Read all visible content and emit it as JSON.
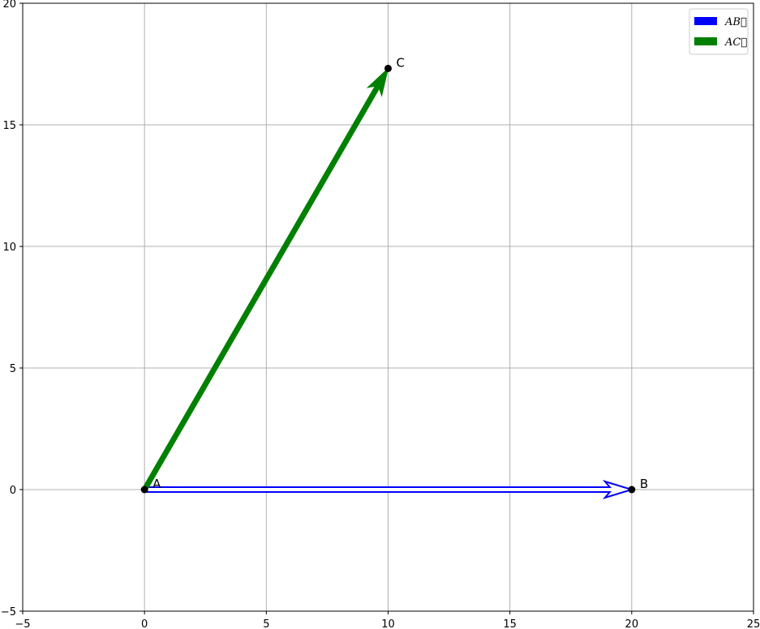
{
  "chart_data": {
    "type": "vector",
    "title": "",
    "xlabel": "",
    "ylabel": "",
    "xlim": [
      -5,
      25
    ],
    "ylim": [
      -5,
      20
    ],
    "grid": true,
    "x_ticks": [
      -5,
      0,
      5,
      10,
      15,
      20,
      25
    ],
    "y_ticks": [
      -5,
      0,
      5,
      10,
      15,
      20
    ],
    "points": [
      {
        "label": "A",
        "x": 0,
        "y": 0
      },
      {
        "label": "B",
        "x": 20,
        "y": 0
      },
      {
        "label": "C",
        "x": 10,
        "y": 17.32
      }
    ],
    "vectors": [
      {
        "name": "$\\vec{AB}$",
        "display": "AB⃗",
        "from": [
          0,
          0
        ],
        "to": [
          20,
          0
        ],
        "color": "#0000ff",
        "style": "outline"
      },
      {
        "name": "$\\vec{AC}$",
        "display": "AC⃗",
        "from": [
          0,
          0
        ],
        "to": [
          10,
          17.32
        ],
        "color": "#008000",
        "style": "solid"
      }
    ],
    "legend": {
      "position": "upper right",
      "entries": [
        {
          "label": "AB⃗",
          "color": "#0000ff"
        },
        {
          "label": "AC⃗",
          "color": "#008000"
        }
      ]
    }
  },
  "colors": {
    "grid": "#b0b0b0",
    "point": "#000000",
    "legend_border": "#cccccc"
  }
}
